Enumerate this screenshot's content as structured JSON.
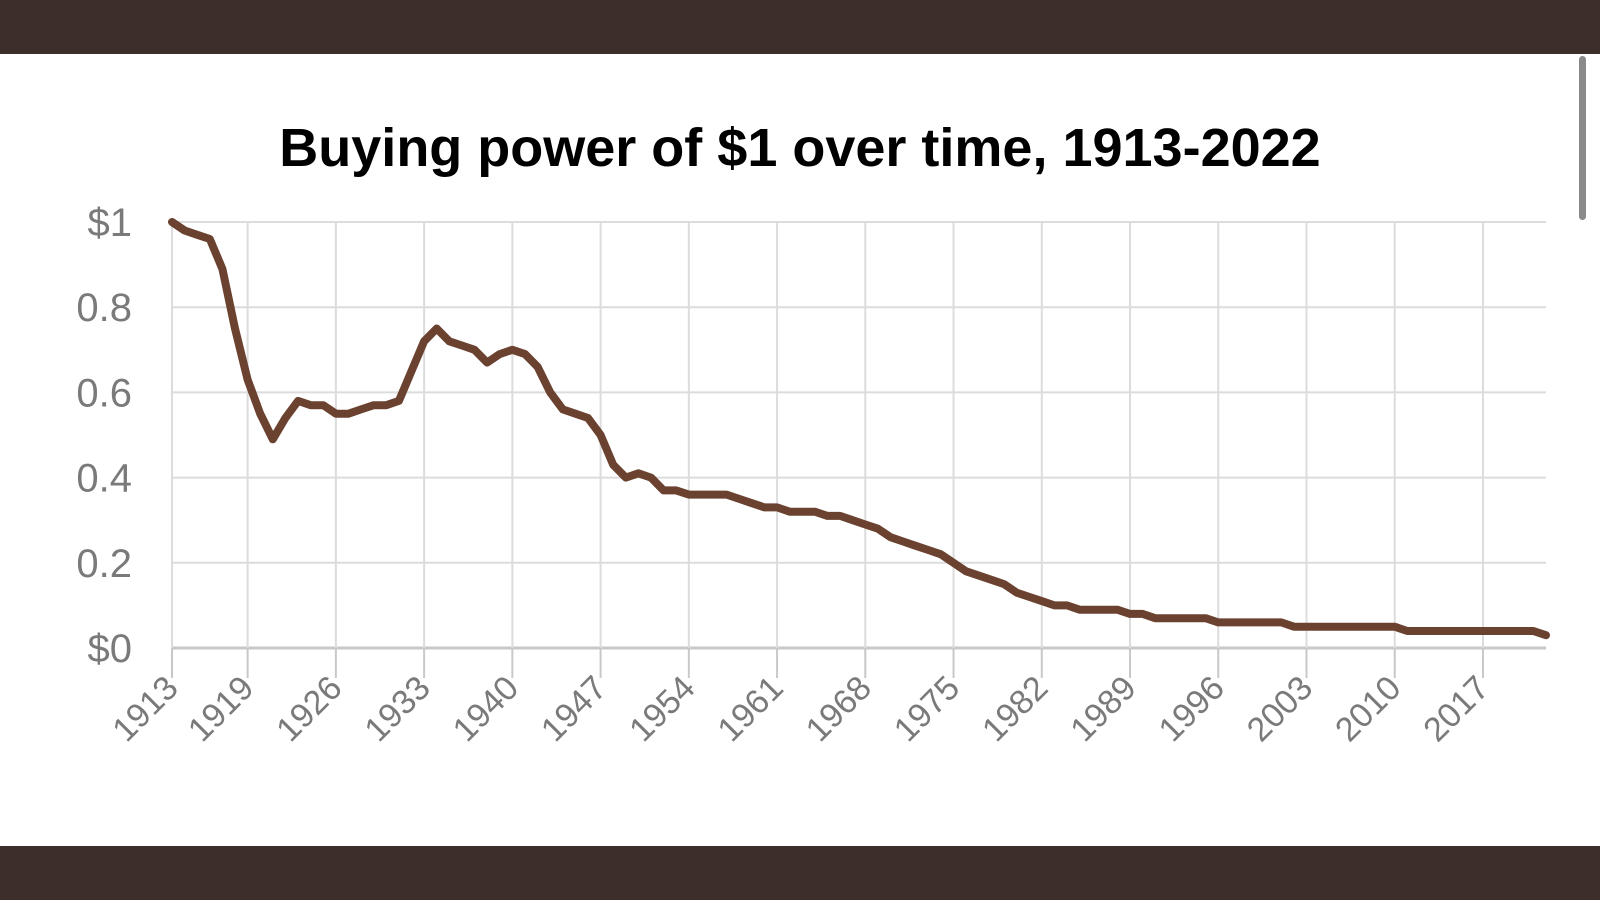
{
  "chart_data": {
    "type": "line",
    "title": "Buying power of $1 over time, 1913-2022",
    "xlabel": "",
    "ylabel": "",
    "ylim": [
      0,
      1
    ],
    "xlim": [
      1913,
      2022
    ],
    "grid": true,
    "line_color": "#6b4230",
    "y_ticks": [
      {
        "value": 1,
        "label": "$1"
      },
      {
        "value": 0.8,
        "label": "0.8"
      },
      {
        "value": 0.6,
        "label": "0.6"
      },
      {
        "value": 0.4,
        "label": "0.4"
      },
      {
        "value": 0.2,
        "label": "0.2"
      },
      {
        "value": 0,
        "label": "$0"
      }
    ],
    "x_ticks": [
      "1913",
      "1919",
      "1926",
      "1933",
      "1940",
      "1947",
      "1954",
      "1961",
      "1968",
      "1975",
      "1982",
      "1989",
      "1996",
      "2003",
      "2010",
      "2017"
    ],
    "series": [
      {
        "x": [
          1913,
          1914,
          1915,
          1916,
          1917,
          1918,
          1919,
          1920,
          1921,
          1922,
          1923,
          1924,
          1925,
          1926,
          1927,
          1928,
          1929,
          1930,
          1931,
          1932,
          1933,
          1934,
          1935,
          1936,
          1937,
          1938,
          1939,
          1940,
          1941,
          1942,
          1943,
          1944,
          1945,
          1946,
          1947,
          1948,
          1949,
          1950,
          1951,
          1952,
          1953,
          1954,
          1955,
          1956,
          1957,
          1958,
          1959,
          1960,
          1961,
          1962,
          1963,
          1964,
          1965,
          1966,
          1967,
          1968,
          1969,
          1970,
          1971,
          1972,
          1973,
          1974,
          1975,
          1976,
          1977,
          1978,
          1979,
          1980,
          1981,
          1982,
          1983,
          1984,
          1985,
          1986,
          1987,
          1988,
          1989,
          1990,
          1991,
          1992,
          1993,
          1994,
          1995,
          1996,
          1997,
          1998,
          1999,
          2000,
          2001,
          2002,
          2003,
          2004,
          2005,
          2006,
          2007,
          2008,
          2009,
          2010,
          2011,
          2012,
          2013,
          2014,
          2015,
          2016,
          2017,
          2018,
          2019,
          2020,
          2021,
          2022
        ],
        "values": [
          1.0,
          0.98,
          0.97,
          0.96,
          0.89,
          0.75,
          0.63,
          0.55,
          0.49,
          0.54,
          0.58,
          0.57,
          0.57,
          0.55,
          0.55,
          0.56,
          0.57,
          0.57,
          0.58,
          0.65,
          0.72,
          0.75,
          0.72,
          0.71,
          0.7,
          0.67,
          0.69,
          0.7,
          0.69,
          0.66,
          0.6,
          0.56,
          0.55,
          0.54,
          0.5,
          0.43,
          0.4,
          0.41,
          0.4,
          0.37,
          0.37,
          0.36,
          0.36,
          0.36,
          0.36,
          0.35,
          0.34,
          0.33,
          0.33,
          0.32,
          0.32,
          0.32,
          0.31,
          0.31,
          0.3,
          0.29,
          0.28,
          0.26,
          0.25,
          0.24,
          0.23,
          0.22,
          0.2,
          0.18,
          0.17,
          0.16,
          0.15,
          0.13,
          0.12,
          0.11,
          0.1,
          0.1,
          0.09,
          0.09,
          0.09,
          0.09,
          0.08,
          0.08,
          0.07,
          0.07,
          0.07,
          0.07,
          0.07,
          0.06,
          0.06,
          0.06,
          0.06,
          0.06,
          0.06,
          0.05,
          0.05,
          0.05,
          0.05,
          0.05,
          0.05,
          0.05,
          0.05,
          0.05,
          0.04,
          0.04,
          0.04,
          0.04,
          0.04,
          0.04,
          0.04,
          0.04,
          0.04,
          0.04,
          0.04,
          0.03
        ]
      }
    ]
  }
}
